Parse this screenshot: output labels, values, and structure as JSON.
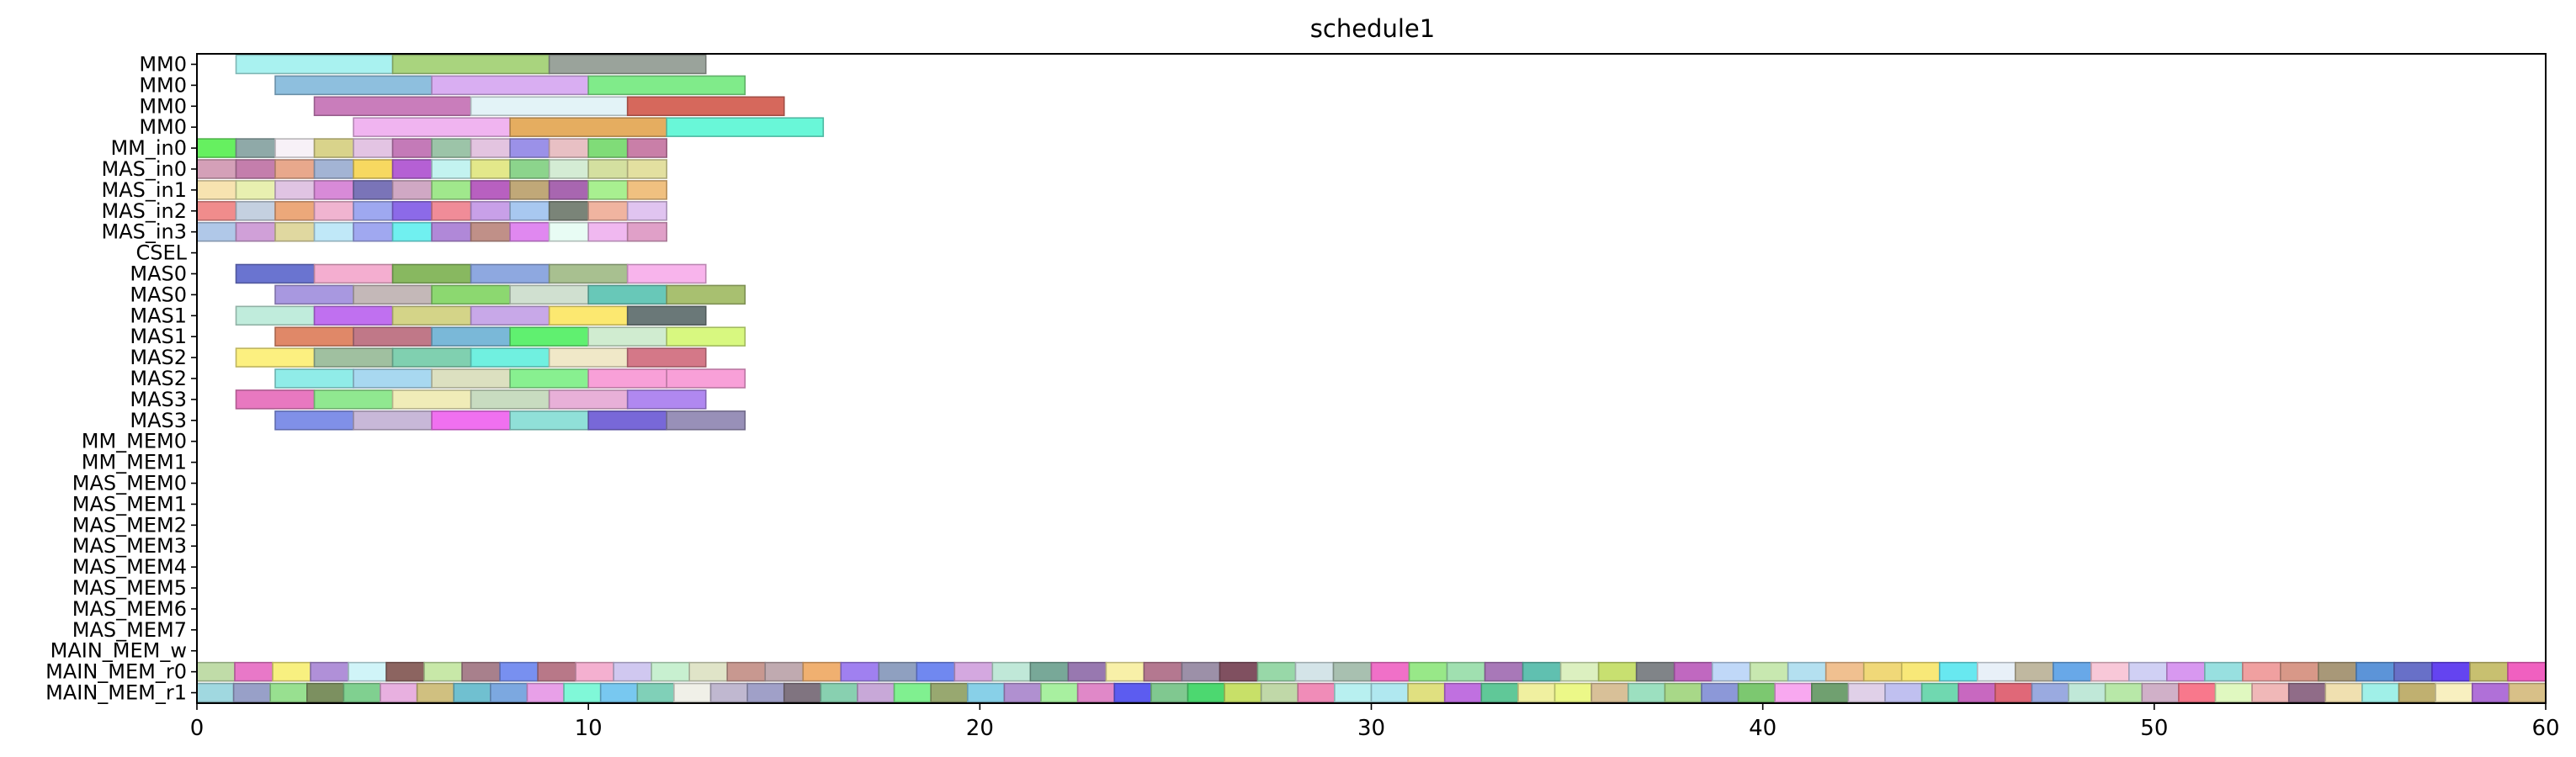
{
  "chart_data": {
    "type": "gantt",
    "title": "schedule1",
    "xlabel": "",
    "ylabel": "",
    "xlim": [
      0,
      60
    ],
    "xticks": [
      0,
      10,
      20,
      30,
      40,
      50,
      60
    ],
    "grid": false,
    "rows": [
      "MM0",
      "MM0",
      "MM0",
      "MM0",
      "MM_in0",
      "MAS_in0",
      "MAS_in1",
      "MAS_in2",
      "MAS_in3",
      "CSEL",
      "MAS0",
      "MAS0",
      "MAS1",
      "MAS1",
      "MAS2",
      "MAS2",
      "MAS3",
      "MAS3",
      "MM_MEM0",
      "MM_MEM1",
      "MAS_MEM0",
      "MAS_MEM1",
      "MAS_MEM2",
      "MAS_MEM3",
      "MAS_MEM4",
      "MAS_MEM5",
      "MAS_MEM6",
      "MAS_MEM7",
      "MAIN_MEM_w",
      "MAIN_MEM_r0",
      "MAIN_MEM_r1"
    ],
    "tasks": [
      {
        "row": 0,
        "start": 1,
        "end": 5,
        "color": "#a9f2f0"
      },
      {
        "row": 0,
        "start": 5,
        "end": 9,
        "color": "#a9d47e"
      },
      {
        "row": 0,
        "start": 9,
        "end": 13,
        "color": "#9aa39b"
      },
      {
        "row": 1,
        "start": 2,
        "end": 6,
        "color": "#8ebfde"
      },
      {
        "row": 1,
        "start": 6,
        "end": 10,
        "color": "#d9aef2"
      },
      {
        "row": 1,
        "start": 10,
        "end": 14,
        "color": "#80eb8a"
      },
      {
        "row": 2,
        "start": 3,
        "end": 7,
        "color": "#c97dbb"
      },
      {
        "row": 2,
        "start": 7,
        "end": 11,
        "color": "#e3f3f7"
      },
      {
        "row": 2,
        "start": 11,
        "end": 15,
        "color": "#d6685c"
      },
      {
        "row": 3,
        "start": 4,
        "end": 8,
        "color": "#f0b4f0"
      },
      {
        "row": 3,
        "start": 8,
        "end": 12,
        "color": "#e5ad60"
      },
      {
        "row": 3,
        "start": 12,
        "end": 16,
        "color": "#69f7d8"
      },
      {
        "row": 4,
        "start": 0,
        "end": 1,
        "color": "#66f060"
      },
      {
        "row": 4,
        "start": 1,
        "end": 2,
        "color": "#8fa9a8"
      },
      {
        "row": 4,
        "start": 2,
        "end": 3,
        "color": "#f7f1f7"
      },
      {
        "row": 4,
        "start": 3,
        "end": 4,
        "color": "#d9d38b"
      },
      {
        "row": 4,
        "start": 4,
        "end": 5,
        "color": "#e3c4e3"
      },
      {
        "row": 4,
        "start": 5,
        "end": 6,
        "color": "#c47ab8"
      },
      {
        "row": 4,
        "start": 6,
        "end": 7,
        "color": "#9cc4a8"
      },
      {
        "row": 4,
        "start": 7,
        "end": 8,
        "color": "#e3c4e0"
      },
      {
        "row": 4,
        "start": 8,
        "end": 9,
        "color": "#9b91e8"
      },
      {
        "row": 4,
        "start": 9,
        "end": 10,
        "color": "#e8c0c4"
      },
      {
        "row": 4,
        "start": 10,
        "end": 11,
        "color": "#80dc78"
      },
      {
        "row": 4,
        "start": 11,
        "end": 12,
        "color": "#c97fa8"
      },
      {
        "row": 5,
        "start": 0,
        "end": 1,
        "color": "#d4a0b8"
      },
      {
        "row": 5,
        "start": 1,
        "end": 2,
        "color": "#c47eac"
      },
      {
        "row": 5,
        "start": 2,
        "end": 3,
        "color": "#e8a88c"
      },
      {
        "row": 5,
        "start": 3,
        "end": 4,
        "color": "#a3b4d4"
      },
      {
        "row": 5,
        "start": 4,
        "end": 5,
        "color": "#f7d860"
      },
      {
        "row": 5,
        "start": 5,
        "end": 6,
        "color": "#b560d4"
      },
      {
        "row": 5,
        "start": 6,
        "end": 7,
        "color": "#c3f3f0"
      },
      {
        "row": 5,
        "start": 7,
        "end": 8,
        "color": "#e3e88a"
      },
      {
        "row": 5,
        "start": 8,
        "end": 9,
        "color": "#8cd48c"
      },
      {
        "row": 5,
        "start": 9,
        "end": 10,
        "color": "#d4ecd4"
      },
      {
        "row": 5,
        "start": 10,
        "end": 11,
        "color": "#d4e0a0"
      },
      {
        "row": 5,
        "start": 11,
        "end": 12,
        "color": "#e3e0a0"
      },
      {
        "row": 6,
        "start": 0,
        "end": 1,
        "color": "#f7e3b0"
      },
      {
        "row": 6,
        "start": 1,
        "end": 2,
        "color": "#e8f0b0"
      },
      {
        "row": 6,
        "start": 2,
        "end": 3,
        "color": "#e0c4e3"
      },
      {
        "row": 6,
        "start": 3,
        "end": 4,
        "color": "#d88ad8"
      },
      {
        "row": 6,
        "start": 4,
        "end": 5,
        "color": "#7a74b8"
      },
      {
        "row": 6,
        "start": 5,
        "end": 6,
        "color": "#d0a8c4"
      },
      {
        "row": 6,
        "start": 6,
        "end": 7,
        "color": "#a0e88c"
      },
      {
        "row": 6,
        "start": 7,
        "end": 8,
        "color": "#b860c0"
      },
      {
        "row": 6,
        "start": 8,
        "end": 9,
        "color": "#c0a878"
      },
      {
        "row": 6,
        "start": 9,
        "end": 10,
        "color": "#a866b0"
      },
      {
        "row": 6,
        "start": 10,
        "end": 11,
        "color": "#a8f090"
      },
      {
        "row": 6,
        "start": 11,
        "end": 12,
        "color": "#f0c080"
      },
      {
        "row": 7,
        "start": 0,
        "end": 1,
        "color": "#f08c8c"
      },
      {
        "row": 7,
        "start": 1,
        "end": 2,
        "color": "#c4d0e0"
      },
      {
        "row": 7,
        "start": 2,
        "end": 3,
        "color": "#eca87a"
      },
      {
        "row": 7,
        "start": 3,
        "end": 4,
        "color": "#f0b4d0"
      },
      {
        "row": 7,
        "start": 4,
        "end": 5,
        "color": "#9ea8f0"
      },
      {
        "row": 7,
        "start": 5,
        "end": 6,
        "color": "#8c6ae8"
      },
      {
        "row": 7,
        "start": 6,
        "end": 7,
        "color": "#f08c98"
      },
      {
        "row": 7,
        "start": 7,
        "end": 8,
        "color": "#c8a0e8"
      },
      {
        "row": 7,
        "start": 8,
        "end": 9,
        "color": "#a8c8f0"
      },
      {
        "row": 7,
        "start": 9,
        "end": 10,
        "color": "#7a8478"
      },
      {
        "row": 7,
        "start": 10,
        "end": 11,
        "color": "#f0b4a0"
      },
      {
        "row": 7,
        "start": 11,
        "end": 12,
        "color": "#e0c4f0"
      },
      {
        "row": 8,
        "start": 0,
        "end": 1,
        "color": "#b0c8e8"
      },
      {
        "row": 8,
        "start": 1,
        "end": 2,
        "color": "#d0a0d8"
      },
      {
        "row": 8,
        "start": 2,
        "end": 3,
        "color": "#e0d8a0"
      },
      {
        "row": 8,
        "start": 3,
        "end": 4,
        "color": "#c0e8f8"
      },
      {
        "row": 8,
        "start": 4,
        "end": 5,
        "color": "#a0a8f0"
      },
      {
        "row": 8,
        "start": 5,
        "end": 6,
        "color": "#70f0f0"
      },
      {
        "row": 8,
        "start": 6,
        "end": 7,
        "color": "#b088d8"
      },
      {
        "row": 8,
        "start": 7,
        "end": 8,
        "color": "#c09088"
      },
      {
        "row": 8,
        "start": 8,
        "end": 9,
        "color": "#e088f0"
      },
      {
        "row": 8,
        "start": 9,
        "end": 10,
        "color": "#e8fcf4"
      },
      {
        "row": 8,
        "start": 10,
        "end": 11,
        "color": "#f0b8f0"
      },
      {
        "row": 8,
        "start": 11,
        "end": 12,
        "color": "#e0a0c8"
      },
      {
        "row": 10,
        "start": 1,
        "end": 3,
        "color": "#6a74d0"
      },
      {
        "row": 10,
        "start": 3,
        "end": 5,
        "color": "#f4aed0"
      },
      {
        "row": 10,
        "start": 5,
        "end": 7,
        "color": "#88b860"
      },
      {
        "row": 10,
        "start": 7,
        "end": 9,
        "color": "#8ea8e0"
      },
      {
        "row": 10,
        "start": 9,
        "end": 11,
        "color": "#a8c090"
      },
      {
        "row": 10,
        "start": 11,
        "end": 13,
        "color": "#f8b4ec"
      },
      {
        "row": 11,
        "start": 2,
        "end": 4,
        "color": "#a898e0"
      },
      {
        "row": 11,
        "start": 4,
        "end": 6,
        "color": "#c4b8b8"
      },
      {
        "row": 11,
        "start": 6,
        "end": 8,
        "color": "#8cd870"
      },
      {
        "row": 11,
        "start": 8,
        "end": 10,
        "color": "#d0e0d0"
      },
      {
        "row": 11,
        "start": 10,
        "end": 12,
        "color": "#68c8b8"
      },
      {
        "row": 11,
        "start": 12,
        "end": 14,
        "color": "#a8c070"
      },
      {
        "row": 12,
        "start": 1,
        "end": 3,
        "color": "#c0ecdc"
      },
      {
        "row": 12,
        "start": 3,
        "end": 5,
        "color": "#c070f0"
      },
      {
        "row": 12,
        "start": 5,
        "end": 7,
        "color": "#d4d488"
      },
      {
        "row": 12,
        "start": 7,
        "end": 9,
        "color": "#c8a8e8"
      },
      {
        "row": 12,
        "start": 9,
        "end": 11,
        "color": "#fce870"
      },
      {
        "row": 12,
        "start": 11,
        "end": 13,
        "color": "#6a7878"
      },
      {
        "row": 13,
        "start": 2,
        "end": 4,
        "color": "#e08868"
      },
      {
        "row": 13,
        "start": 4,
        "end": 6,
        "color": "#c07888"
      },
      {
        "row": 13,
        "start": 6,
        "end": 8,
        "color": "#7ab8d8"
      },
      {
        "row": 13,
        "start": 8,
        "end": 10,
        "color": "#60f070"
      },
      {
        "row": 13,
        "start": 10,
        "end": 12,
        "color": "#d0ecd0"
      },
      {
        "row": 13,
        "start": 12,
        "end": 14,
        "color": "#d8f880"
      },
      {
        "row": 14,
        "start": 1,
        "end": 3,
        "color": "#fcf080"
      },
      {
        "row": 14,
        "start": 3,
        "end": 5,
        "color": "#a0c0a0"
      },
      {
        "row": 14,
        "start": 5,
        "end": 7,
        "color": "#80d0b0"
      },
      {
        "row": 14,
        "start": 7,
        "end": 9,
        "color": "#70f0e0"
      },
      {
        "row": 14,
        "start": 9,
        "end": 11,
        "color": "#f0e8c8"
      },
      {
        "row": 14,
        "start": 11,
        "end": 13,
        "color": "#d47888"
      },
      {
        "row": 15,
        "start": 2,
        "end": 4,
        "color": "#90ece8"
      },
      {
        "row": 15,
        "start": 4,
        "end": 6,
        "color": "#a8d8f0"
      },
      {
        "row": 15,
        "start": 6,
        "end": 8,
        "color": "#dce0c0"
      },
      {
        "row": 15,
        "start": 8,
        "end": 10,
        "color": "#88f090"
      },
      {
        "row": 15,
        "start": 10,
        "end": 12,
        "color": "#f8a0d8"
      },
      {
        "row": 15,
        "start": 12,
        "end": 14,
        "color": "#f8a0d8"
      },
      {
        "row": 16,
        "start": 1,
        "end": 3,
        "color": "#e878c0"
      },
      {
        "row": 16,
        "start": 3,
        "end": 5,
        "color": "#90e890"
      },
      {
        "row": 16,
        "start": 5,
        "end": 7,
        "color": "#f0ecb8"
      },
      {
        "row": 16,
        "start": 7,
        "end": 9,
        "color": "#c8dcc0"
      },
      {
        "row": 16,
        "start": 9,
        "end": 11,
        "color": "#e8b0d8"
      },
      {
        "row": 16,
        "start": 11,
        "end": 13,
        "color": "#b088f0"
      },
      {
        "row": 17,
        "start": 2,
        "end": 4,
        "color": "#8090e8"
      },
      {
        "row": 17,
        "start": 4,
        "end": 6,
        "color": "#c8b8d8"
      },
      {
        "row": 17,
        "start": 6,
        "end": 8,
        "color": "#f070f0"
      },
      {
        "row": 17,
        "start": 8,
        "end": 10,
        "color": "#90e0d8"
      },
      {
        "row": 17,
        "start": 10,
        "end": 12,
        "color": "#7868d8"
      },
      {
        "row": 17,
        "start": 12,
        "end": 14,
        "color": "#9890b8"
      }
    ],
    "stripe_rows": [
      {
        "row": 29,
        "start": 0,
        "end": 60,
        "colors": [
          "#c0dca8",
          "#e878c8",
          "#f8f080",
          "#b090d8",
          "#d0f4f8",
          "#8c6460",
          "#c8e8a8",
          "#a8808c",
          "#7890f0",
          "#b87888",
          "#f4b0d0",
          "#d0c8f0",
          "#c8f0d0",
          "#e0e4c8",
          "#c89890",
          "#c0aab0",
          "#f0b070",
          "#a080f0",
          "#8fa0c0",
          "#7088f0",
          "#d4a8e0",
          "#c0e8d8",
          "#78a898",
          "#9878b0",
          "#f8f0a8",
          "#b47890",
          "#9c90a8",
          "#805060",
          "#98d8a8",
          "#d4e4e8",
          "#a8c0b0",
          "#f070c8",
          "#98e888",
          "#a0e0b0",
          "#a878b8",
          "#60c0b0",
          "#dcf0c0",
          "#c8e070",
          "#808488",
          "#c068c0",
          "#c0d8f8",
          "#c8e8b0",
          "#b4e0f0",
          "#f0c090",
          "#f0d878",
          "#f8e878",
          "#68e8f0",
          "#e8f0f8",
          "#c0b8a0",
          "#68a8e8",
          "#f8c8d8",
          "#d0d0f4",
          "#d898f0",
          "#98e0e0",
          "#f0a0a0",
          "#d89888",
          "#a89878",
          "#5c94d8",
          "#6870c8",
          "#6444f0",
          "#c8c070",
          "#f060c0"
        ]
      },
      {
        "row": 30,
        "start": 0,
        "end": 60,
        "colors": [
          "#a0d8e0",
          "#98a0c8",
          "#98e090",
          "#7c9060",
          "#80d090",
          "#e8b0e0",
          "#d0c080",
          "#70c0d0",
          "#7ca8e0",
          "#e8a0e8",
          "#80f8d8",
          "#78c8f0",
          "#80d0b8",
          "#f0f0e8",
          "#c0b8d0",
          "#a0a0c8",
          "#807480",
          "#88d0b0",
          "#c8a8d8",
          "#80f090",
          "#98a870",
          "#88d0e8",
          "#b090d0",
          "#a8f0a0",
          "#e088c8",
          "#5c5cf0",
          "#80c890",
          "#4cd870",
          "#c8e068",
          "#c0d8a8",
          "#f08cb8",
          "#b8f0f0",
          "#b0e8f0",
          "#e0e080",
          "#c070e0",
          "#60c898",
          "#f0f0a0",
          "#ecf888",
          "#d8c098",
          "#9ce0c0",
          "#a8d888",
          "#8c98d8",
          "#7cc870",
          "#f8a8f0",
          "#70a070",
          "#e0d0e8",
          "#c0c0f0",
          "#70d8b0",
          "#c868c0",
          "#e06878",
          "#9aaae0",
          "#c0e8d8",
          "#b8e8a8",
          "#d0b0c8",
          "#f8788c",
          "#e0f8c0",
          "#f0b8b8",
          "#906c88",
          "#f0e0b0",
          "#a0f0e8",
          "#c0b070",
          "#f8f0c0",
          "#b070d8",
          "#d8c088"
        ]
      }
    ]
  }
}
